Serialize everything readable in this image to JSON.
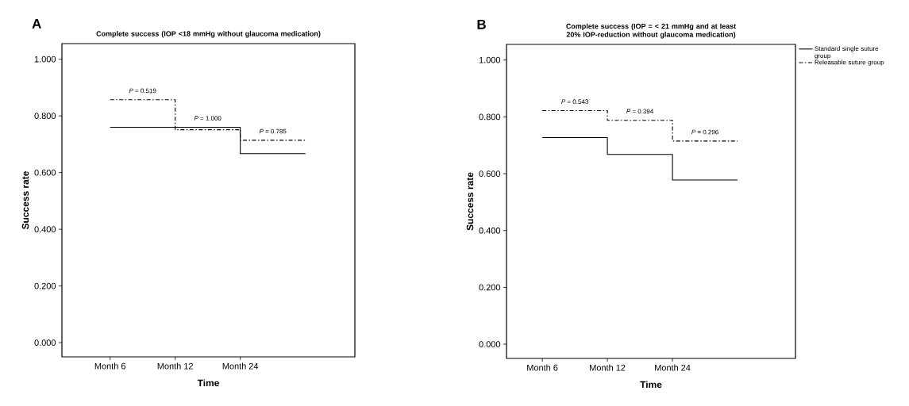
{
  "chart_data": [
    {
      "type": "step",
      "title": "Complete success (IOP <18 mmHg without glaucoma medication)",
      "xlabel": "Time",
      "ylabel": "Success  rate",
      "categories": [
        "Month 6",
        "Month 12",
        "Month 24"
      ],
      "ylim": [
        -0.05,
        1.055
      ],
      "yticks": [
        {
          "value": 0,
          "label": "0.000"
        },
        {
          "value": 0.2,
          "label": "0.200"
        },
        {
          "value": 0.4,
          "label": "0.400"
        },
        {
          "value": 0.6,
          "label": "0.600"
        },
        {
          "value": 0.8,
          "label": "0.800"
        },
        {
          "value": 1,
          "label": "1.000"
        }
      ],
      "series": [
        {
          "color": "#000000",
          "line_style": "solid",
          "values": [
            0.76,
            0.76,
            0.667
          ]
        },
        {
          "color": "#000000",
          "line_style": "dashdot",
          "values": [
            0.857,
            0.751,
            0.714
          ]
        }
      ],
      "annotations": [
        "A",
        "*P* = 0.519",
        "*P* = 1.000",
        "*P* = 0.785"
      ],
      "grid": false,
      "legend": false
    },
    {
      "type": "step",
      "title": "Complete success (IOP = < 21 mmHg and at least 20% IOP-reduction without glaucoma medication)",
      "xlabel": "Time",
      "ylabel": "Success  rate",
      "categories": [
        "Month 6",
        "Month 12",
        "Month 24"
      ],
      "ylim": [
        -0.05,
        1.055
      ],
      "yticks": [
        {
          "value": 0,
          "label": "0.000"
        },
        {
          "value": 0.2,
          "label": "0.200"
        },
        {
          "value": 0.4,
          "label": "0.400"
        },
        {
          "value": 0.6,
          "label": "0.600"
        },
        {
          "value": 0.8,
          "label": "0.800"
        },
        {
          "value": 1,
          "label": "1.000"
        }
      ],
      "series": [
        {
          "name": "Standard single suture group",
          "color": "#000000",
          "line_style": "solid",
          "values": [
            0.727,
            0.668,
            0.578
          ]
        },
        {
          "name": "Releasable suture group",
          "color": "#000000",
          "line_style": "dashdot",
          "values": [
            0.822,
            0.788,
            0.715
          ]
        }
      ],
      "annotations": [
        "B",
        "*P* = 0.543",
        "*P* = 0.394",
        "*P* = 0.296"
      ],
      "grid": false,
      "legend": "top right"
    }
  ]
}
